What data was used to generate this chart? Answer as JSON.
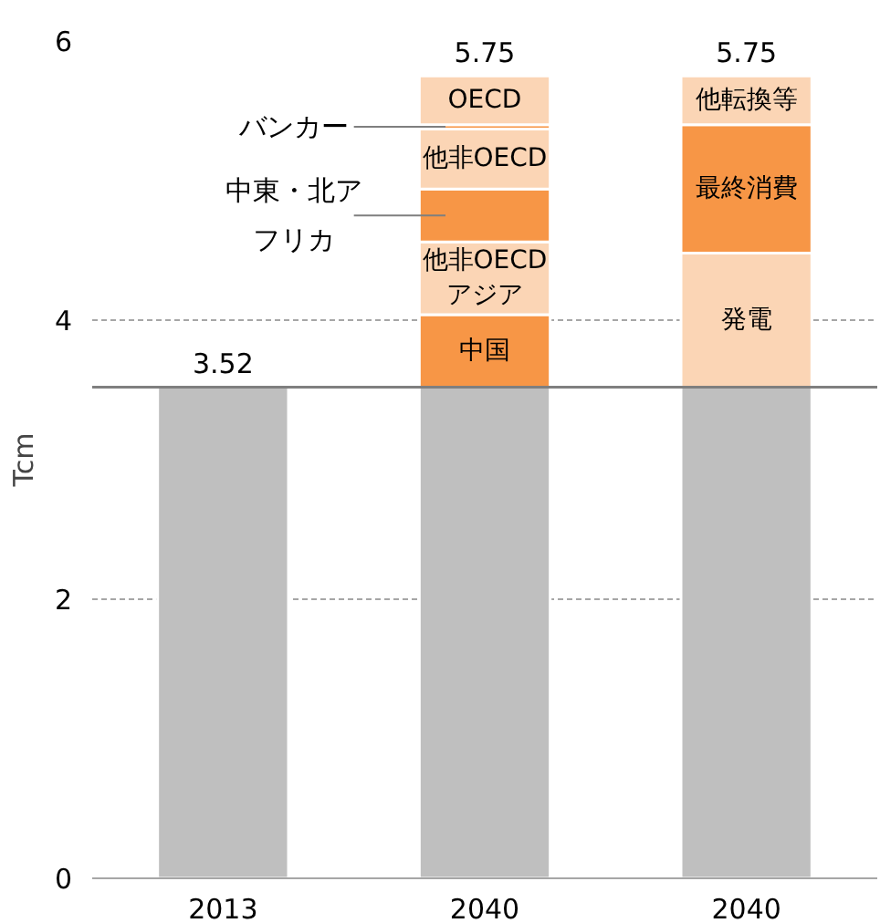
{
  "chart_data": {
    "type": "bar",
    "stacked": true,
    "ylabel": "Tcm",
    "categories": [
      "2013",
      "2040",
      "2040"
    ],
    "series": [
      {
        "color": "#bfbfbf",
        "values": [
          3.52,
          3.52,
          3.52
        ]
      },
      {
        "name": "中国",
        "color": "#f79646",
        "values": [
          null,
          0.52,
          null
        ]
      },
      {
        "name": "他非OECDアジア",
        "color": "#fbd5b5",
        "values": [
          null,
          0.52,
          null
        ]
      },
      {
        "name": "中東・北アフリカ",
        "color": "#f79646",
        "values": [
          null,
          0.38,
          null
        ]
      },
      {
        "name": "他非OECD",
        "color": "#fbd5b5",
        "values": [
          null,
          0.43,
          null
        ]
      },
      {
        "name": "バンカー",
        "color": "#f79646",
        "values": [
          null,
          0.03,
          null
        ]
      },
      {
        "name": "OECD",
        "color": "#fbd5b5",
        "values": [
          null,
          0.35,
          null
        ]
      },
      {
        "name": "発電",
        "color": "#fbd5b5",
        "values": [
          null,
          null,
          0.96
        ]
      },
      {
        "name": "最終消費",
        "color": "#f79646",
        "values": [
          null,
          null,
          0.92
        ]
      },
      {
        "name": "他転換等",
        "color": "#fbd5b5",
        "values": [
          null,
          null,
          0.35
        ]
      }
    ],
    "totals": [
      "3.52",
      "5.75",
      "5.75"
    ],
    "ylim": [
      0,
      6
    ],
    "yticks": [
      0,
      2,
      4,
      6
    ],
    "grid": "y",
    "ref_lines": [
      {
        "axis": "y",
        "value": 3.52,
        "color": "#7f7f7f"
      }
    ]
  }
}
